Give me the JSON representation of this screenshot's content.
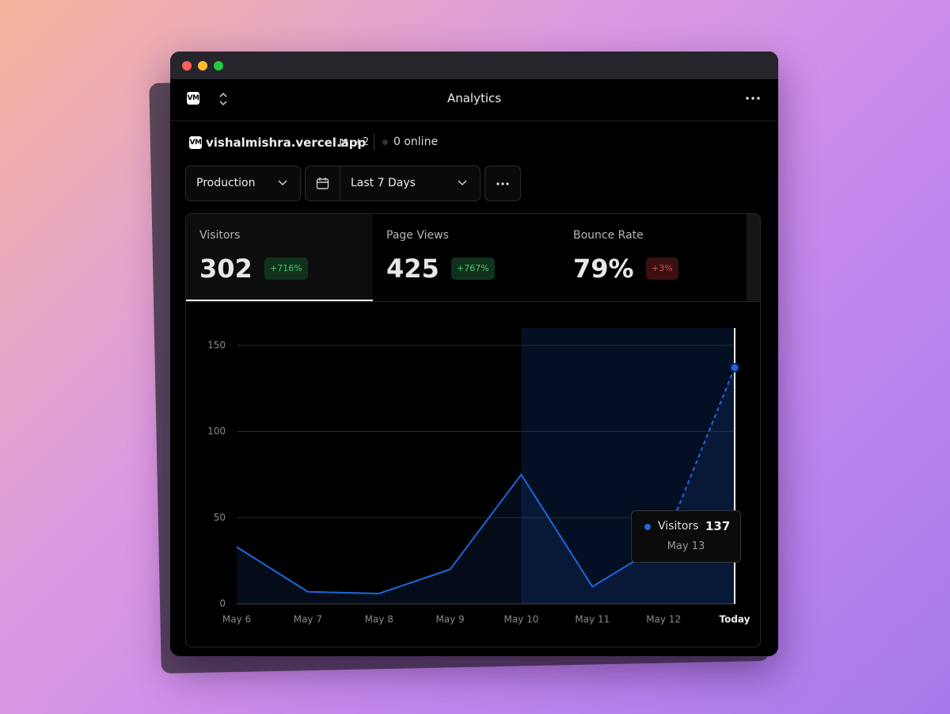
{
  "window": {
    "title": "Analytics",
    "logo": "VM"
  },
  "site": {
    "domain": "vishalmishra.vercel.app",
    "extra": "+2",
    "online": "0 online"
  },
  "filters": {
    "environment": "Production",
    "range": "Last 7 Days"
  },
  "stats": [
    {
      "label": "Visitors",
      "value": "302",
      "change": "+716%",
      "trend": "up"
    },
    {
      "label": "Page Views",
      "value": "425",
      "change": "+767%",
      "trend": "up"
    },
    {
      "label": "Bounce Rate",
      "value": "79%",
      "change": "+3%",
      "trend": "down"
    }
  ],
  "tooltip": {
    "date": "May 13"
  },
  "chart_data": {
    "type": "line",
    "categories": [
      "May 6",
      "May 7",
      "May 8",
      "May 9",
      "May 10",
      "May 11",
      "May 12",
      "Today"
    ],
    "series": [
      {
        "name": "Visitors",
        "color": "#1f66d9",
        "values": [
          33,
          7,
          6,
          20,
          75,
          10,
          35,
          137
        ]
      }
    ],
    "ylim": [
      0,
      160
    ],
    "yticks": [
      0,
      50,
      100,
      150
    ],
    "grid": true
  }
}
